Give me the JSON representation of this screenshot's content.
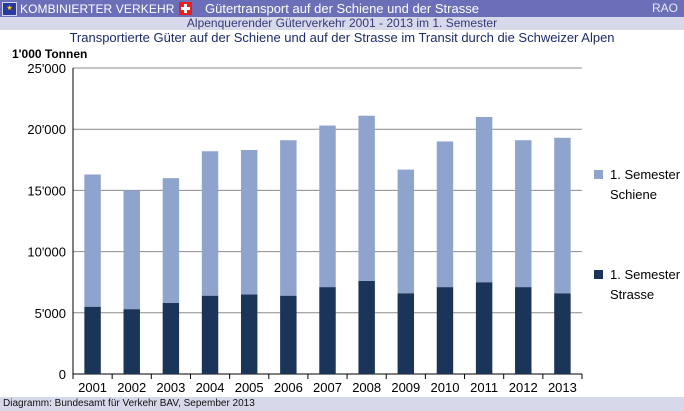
{
  "header": {
    "logo_text": "KOMBINIERTER VERKEHR",
    "title": "Gütertransport auf der Schiene und der Strasse",
    "corner_label": "RAO"
  },
  "subheader": "Alpenquerender Güterverkehr 2001 - 2013 im 1. Semester",
  "footer": "Diagramm: Bundesamt für Verkehr BAV, Sepember 2013",
  "colors": {
    "header_bg": "#6b6fb7",
    "subheader_bg": "#d7d9ea",
    "rail": "#8fa4cc",
    "road": "#1b3558"
  },
  "chart_data": {
    "type": "bar",
    "stacked": true,
    "title": "Transportierte Güter auf der Schiene und auf der Strasse im Transit durch die Schweizer Alpen",
    "ylabel": "1'000 Tonnen",
    "xlabel": "",
    "ylim": [
      0,
      25000
    ],
    "yticks": [
      0,
      5000,
      10000,
      15000,
      20000,
      25000
    ],
    "ytick_labels": [
      "0",
      "5'000",
      "10'000",
      "15'000",
      "20'000",
      "25'000"
    ],
    "grid": true,
    "legend_position": "right",
    "categories": [
      "2001",
      "2002",
      "2003",
      "2004",
      "2005",
      "2006",
      "2007",
      "2008",
      "2009",
      "2010",
      "2011",
      "2012",
      "2013"
    ],
    "series": [
      {
        "name": "1. Semester Strasse",
        "legend_lines": [
          "1. Semester",
          "Strasse"
        ],
        "color": "#1b3558",
        "values": [
          5500,
          5300,
          5800,
          6400,
          6500,
          6400,
          7100,
          7600,
          6600,
          7100,
          7500,
          7100,
          6600
        ]
      },
      {
        "name": "1. Semester Schiene",
        "legend_lines": [
          "1. Semester",
          "Schiene"
        ],
        "color": "#8fa4cc",
        "values": [
          10800,
          9700,
          10200,
          11800,
          11800,
          12700,
          13200,
          13500,
          10100,
          11900,
          13500,
          12000,
          12700
        ]
      }
    ]
  }
}
